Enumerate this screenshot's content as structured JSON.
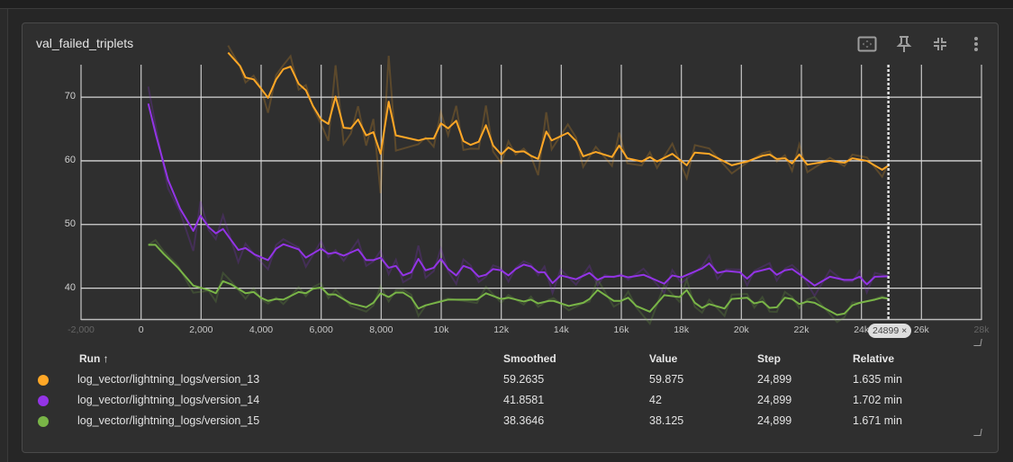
{
  "card": {
    "title": "val_failed_triplets"
  },
  "toolbar": {
    "icons": [
      "fit-domain-icon",
      "pin-icon",
      "collapse-icon",
      "more-vert-icon"
    ]
  },
  "chart_data": {
    "type": "line",
    "title": "val_failed_triplets",
    "xlim": [
      -2000,
      28000
    ],
    "ylim": [
      35,
      75.1
    ],
    "grid": true,
    "x_ticks": [
      -2000,
      0,
      2000,
      4000,
      6000,
      8000,
      10000,
      12000,
      14000,
      16000,
      18000,
      20000,
      22000,
      24000,
      26000,
      28000
    ],
    "x_tick_labels": [
      "-2,000",
      "0",
      "2,000",
      "4,000",
      "6,000",
      "8,000",
      "10k",
      "12k",
      "14k",
      "16k",
      "18k",
      "20k",
      "22k",
      "24k",
      "26k",
      "28k"
    ],
    "y_ticks": [
      40,
      50,
      60,
      70
    ],
    "y_tick_labels": [
      "40",
      "50",
      "60",
      "70"
    ],
    "hover_step": 24899,
    "hover_label": "24899 ×",
    "series": [
      {
        "name": "log_vector/lightning_logs/version_13",
        "color": "#ffa726",
        "points": [
          [
            2900,
            77
          ],
          [
            3300,
            74.9
          ],
          [
            3480,
            73.1
          ],
          [
            3750,
            72.8
          ],
          [
            3990,
            71.4
          ],
          [
            4230,
            69.9
          ],
          [
            4500,
            72.8
          ],
          [
            4740,
            74.4
          ],
          [
            4980,
            74.8
          ],
          [
            5250,
            72.1
          ],
          [
            5490,
            71.1
          ],
          [
            5730,
            68.6
          ],
          [
            6000,
            66.5
          ],
          [
            6240,
            65.8
          ],
          [
            6480,
            70.1
          ],
          [
            6750,
            65.2
          ],
          [
            6990,
            65.1
          ],
          [
            7230,
            66.5
          ],
          [
            7500,
            64.0
          ],
          [
            7740,
            64.5
          ],
          [
            7980,
            61.1
          ],
          [
            8250,
            69.3
          ],
          [
            8490,
            64.0
          ],
          [
            9240,
            63.2
          ],
          [
            9480,
            63.5
          ],
          [
            9750,
            63.5
          ],
          [
            9990,
            65.9
          ],
          [
            10230,
            65.1
          ],
          [
            10500,
            66.3
          ],
          [
            10740,
            63.1
          ],
          [
            10980,
            62.5
          ],
          [
            11250,
            63.0
          ],
          [
            11490,
            65.6
          ],
          [
            11730,
            62.4
          ],
          [
            12000,
            61.0
          ],
          [
            12240,
            62.1
          ],
          [
            12480,
            61.4
          ],
          [
            12750,
            61.5
          ],
          [
            12990,
            60.8
          ],
          [
            13230,
            60.3
          ],
          [
            13500,
            64.6
          ],
          [
            13680,
            63.2
          ],
          [
            14220,
            64.4
          ],
          [
            14490,
            63.1
          ],
          [
            14730,
            60.7
          ],
          [
            15150,
            61.4
          ],
          [
            15690,
            60.6
          ],
          [
            15930,
            62.4
          ],
          [
            16200,
            60.4
          ],
          [
            16680,
            59.9
          ],
          [
            16950,
            60.6
          ],
          [
            17190,
            59.9
          ],
          [
            17700,
            61.1
          ],
          [
            18180,
            59.3
          ],
          [
            18450,
            61.3
          ],
          [
            18930,
            61.1
          ],
          [
            19680,
            59.3
          ],
          [
            20190,
            59.9
          ],
          [
            20700,
            60.8
          ],
          [
            20940,
            61.0
          ],
          [
            21180,
            60.3
          ],
          [
            21450,
            60.4
          ],
          [
            21690,
            59.6
          ],
          [
            21930,
            61.0
          ],
          [
            22200,
            59.4
          ],
          [
            22950,
            60.0
          ],
          [
            23430,
            59.7
          ],
          [
            23700,
            60.4
          ],
          [
            24180,
            60.0
          ],
          [
            24690,
            58.6
          ],
          [
            24899,
            59.26
          ]
        ]
      },
      {
        "name": "log_vector/lightning_logs/version_14",
        "color": "#9334e6",
        "points": [
          [
            240,
            69.0
          ],
          [
            500,
            64.0
          ],
          [
            900,
            57.0
          ],
          [
            1300,
            52.5
          ],
          [
            1740,
            49.0
          ],
          [
            1980,
            51.4
          ],
          [
            2250,
            49.6
          ],
          [
            2490,
            48.6
          ],
          [
            2730,
            49.3
          ],
          [
            3240,
            46.0
          ],
          [
            3480,
            46.3
          ],
          [
            3780,
            45.3
          ],
          [
            4230,
            44.4
          ],
          [
            4500,
            46.2
          ],
          [
            4740,
            46.9
          ],
          [
            5250,
            46.1
          ],
          [
            5490,
            44.8
          ],
          [
            6000,
            46.2
          ],
          [
            6240,
            45.4
          ],
          [
            6480,
            45.6
          ],
          [
            6750,
            45.1
          ],
          [
            7230,
            46.1
          ],
          [
            7500,
            44.4
          ],
          [
            7740,
            44.4
          ],
          [
            7980,
            44.8
          ],
          [
            8250,
            43.2
          ],
          [
            8490,
            43.5
          ],
          [
            8730,
            42.0
          ],
          [
            9000,
            42.5
          ],
          [
            9240,
            44.6
          ],
          [
            9480,
            42.8
          ],
          [
            9750,
            43.2
          ],
          [
            9990,
            44.6
          ],
          [
            10230,
            43.0
          ],
          [
            10500,
            42.0
          ],
          [
            10740,
            43.5
          ],
          [
            10980,
            43.1
          ],
          [
            11250,
            41.8
          ],
          [
            11490,
            42.1
          ],
          [
            11730,
            43.0
          ],
          [
            12000,
            42.8
          ],
          [
            12240,
            42.0
          ],
          [
            12480,
            43.0
          ],
          [
            12750,
            43.7
          ],
          [
            12990,
            43.4
          ],
          [
            13230,
            42.5
          ],
          [
            13440,
            42.5
          ],
          [
            13710,
            40.8
          ],
          [
            13980,
            42.0
          ],
          [
            14490,
            41.4
          ],
          [
            14940,
            42.4
          ],
          [
            15210,
            41.3
          ],
          [
            15450,
            41.8
          ],
          [
            15750,
            41.8
          ],
          [
            15990,
            42.0
          ],
          [
            16230,
            41.7
          ],
          [
            16740,
            42.1
          ],
          [
            17430,
            40.7
          ],
          [
            17700,
            42.0
          ],
          [
            18000,
            41.7
          ],
          [
            18690,
            43.1
          ],
          [
            18930,
            43.9
          ],
          [
            19200,
            42.4
          ],
          [
            19500,
            42.7
          ],
          [
            19950,
            42.5
          ],
          [
            20190,
            41.5
          ],
          [
            20430,
            42.5
          ],
          [
            20940,
            43.1
          ],
          [
            21180,
            42.1
          ],
          [
            21450,
            42.8
          ],
          [
            21690,
            43.0
          ],
          [
            21990,
            42.0
          ],
          [
            22440,
            40.4
          ],
          [
            22950,
            41.8
          ],
          [
            23430,
            41.3
          ],
          [
            23700,
            41.3
          ],
          [
            23940,
            41.8
          ],
          [
            24180,
            40.6
          ],
          [
            24450,
            41.8
          ],
          [
            24899,
            41.86
          ]
        ]
      },
      {
        "name": "log_vector/lightning_logs/version_15",
        "color": "#79b547",
        "points": [
          [
            240,
            46.8
          ],
          [
            480,
            46.8
          ],
          [
            750,
            45.4
          ],
          [
            1230,
            43.2
          ],
          [
            1740,
            40.4
          ],
          [
            2250,
            39.7
          ],
          [
            2490,
            39.2
          ],
          [
            2730,
            41.1
          ],
          [
            3000,
            40.6
          ],
          [
            3480,
            39.2
          ],
          [
            3750,
            39.4
          ],
          [
            3990,
            38.5
          ],
          [
            4230,
            38.0
          ],
          [
            4500,
            38.3
          ],
          [
            4740,
            38.2
          ],
          [
            5250,
            39.4
          ],
          [
            5490,
            39.2
          ],
          [
            5730,
            39.9
          ],
          [
            6000,
            40.1
          ],
          [
            6240,
            39.0
          ],
          [
            6480,
            39.0
          ],
          [
            6990,
            37.6
          ],
          [
            7500,
            37.0
          ],
          [
            7740,
            37.7
          ],
          [
            7980,
            39.2
          ],
          [
            8250,
            38.6
          ],
          [
            8490,
            39.3
          ],
          [
            8730,
            39.3
          ],
          [
            9000,
            38.5
          ],
          [
            9240,
            36.8
          ],
          [
            9480,
            37.3
          ],
          [
            9990,
            37.9
          ],
          [
            10230,
            38.2
          ],
          [
            11190,
            38.2
          ],
          [
            11490,
            39.2
          ],
          [
            12000,
            38.3
          ],
          [
            12240,
            38.5
          ],
          [
            12750,
            37.9
          ],
          [
            12990,
            38.2
          ],
          [
            13230,
            37.6
          ],
          [
            13590,
            38.0
          ],
          [
            13740,
            38.0
          ],
          [
            14250,
            37.2
          ],
          [
            14730,
            37.7
          ],
          [
            14940,
            38.3
          ],
          [
            15210,
            39.7
          ],
          [
            15750,
            38.0
          ],
          [
            15990,
            38.0
          ],
          [
            16230,
            38.5
          ],
          [
            16500,
            37.2
          ],
          [
            16950,
            36.3
          ],
          [
            17430,
            38.9
          ],
          [
            17940,
            38.6
          ],
          [
            18180,
            39.7
          ],
          [
            18450,
            37.7
          ],
          [
            18690,
            36.9
          ],
          [
            18930,
            37.5
          ],
          [
            19440,
            36.8
          ],
          [
            19680,
            38.3
          ],
          [
            20190,
            38.5
          ],
          [
            20430,
            37.6
          ],
          [
            20700,
            37.9
          ],
          [
            20940,
            36.9
          ],
          [
            21180,
            37.0
          ],
          [
            21450,
            38.5
          ],
          [
            21690,
            38.3
          ],
          [
            21930,
            37.5
          ],
          [
            22200,
            37.9
          ],
          [
            22440,
            37.7
          ],
          [
            23190,
            35.8
          ],
          [
            23430,
            36.0
          ],
          [
            23700,
            37.3
          ],
          [
            23940,
            37.7
          ],
          [
            24450,
            38.2
          ],
          [
            24690,
            38.5
          ],
          [
            24899,
            38.36
          ]
        ]
      }
    ]
  },
  "table": {
    "headers": {
      "run": "Run ↑",
      "smoothed": "Smoothed",
      "value": "Value",
      "step": "Step",
      "relative": "Relative"
    },
    "rows": [
      {
        "color": "#ffa726",
        "run": "log_vector/lightning_logs/version_13",
        "smoothed": "59.2635",
        "value": "59.875",
        "step": "24,899",
        "relative": "1.635 min"
      },
      {
        "color": "#9334e6",
        "run": "log_vector/lightning_logs/version_14",
        "smoothed": "41.8581",
        "value": "42",
        "step": "24,899",
        "relative": "1.702 min"
      },
      {
        "color": "#79b547",
        "run": "log_vector/lightning_logs/version_15",
        "smoothed": "38.3646",
        "value": "38.125",
        "step": "24,899",
        "relative": "1.671 min"
      }
    ]
  }
}
